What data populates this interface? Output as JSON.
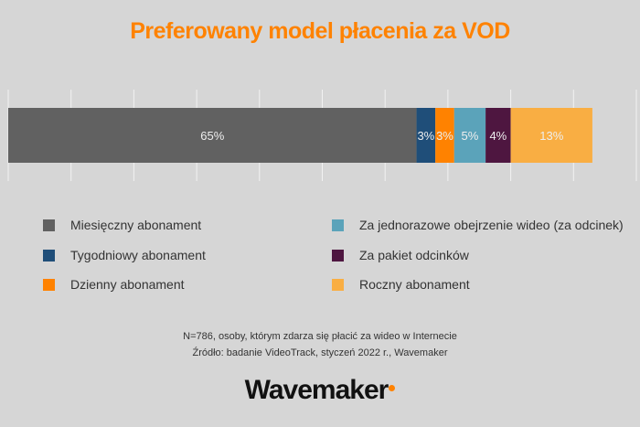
{
  "chart_data": {
    "type": "bar",
    "orientation": "horizontal-stacked",
    "title": "Preferowany model płacenia za VOD",
    "xlim": [
      0,
      100
    ],
    "grid": true,
    "legend_position": "bottom",
    "series": [
      {
        "name": "Miesięczny abonament",
        "value": 65,
        "label": "65%",
        "color": "#616161"
      },
      {
        "name": "Tygodniowy abonament",
        "value": 3,
        "label": "3%",
        "color": "#1f4e79"
      },
      {
        "name": "Dzienny abonament",
        "value": 3,
        "label": "3%",
        "color": "#ff8200"
      },
      {
        "name": "Za jednorazowe obejrzenie wideo (za odcinek)",
        "value": 5,
        "label": "5%",
        "color": "#5ba3ba"
      },
      {
        "name": "Za pakiet odcinków",
        "value": 4,
        "label": "4%",
        "color": "#4e1640"
      },
      {
        "name": "Roczny abonament",
        "value": 13,
        "label": "13%",
        "color": "#f9ae43"
      }
    ]
  },
  "notes": {
    "sample": "N=786, osoby, którym zdarza się płacić za wideo w Internecie",
    "source": "Źródło: badanie VideoTrack, styczeń 2022 r., Wavemaker"
  },
  "logo": "Wavemaker"
}
